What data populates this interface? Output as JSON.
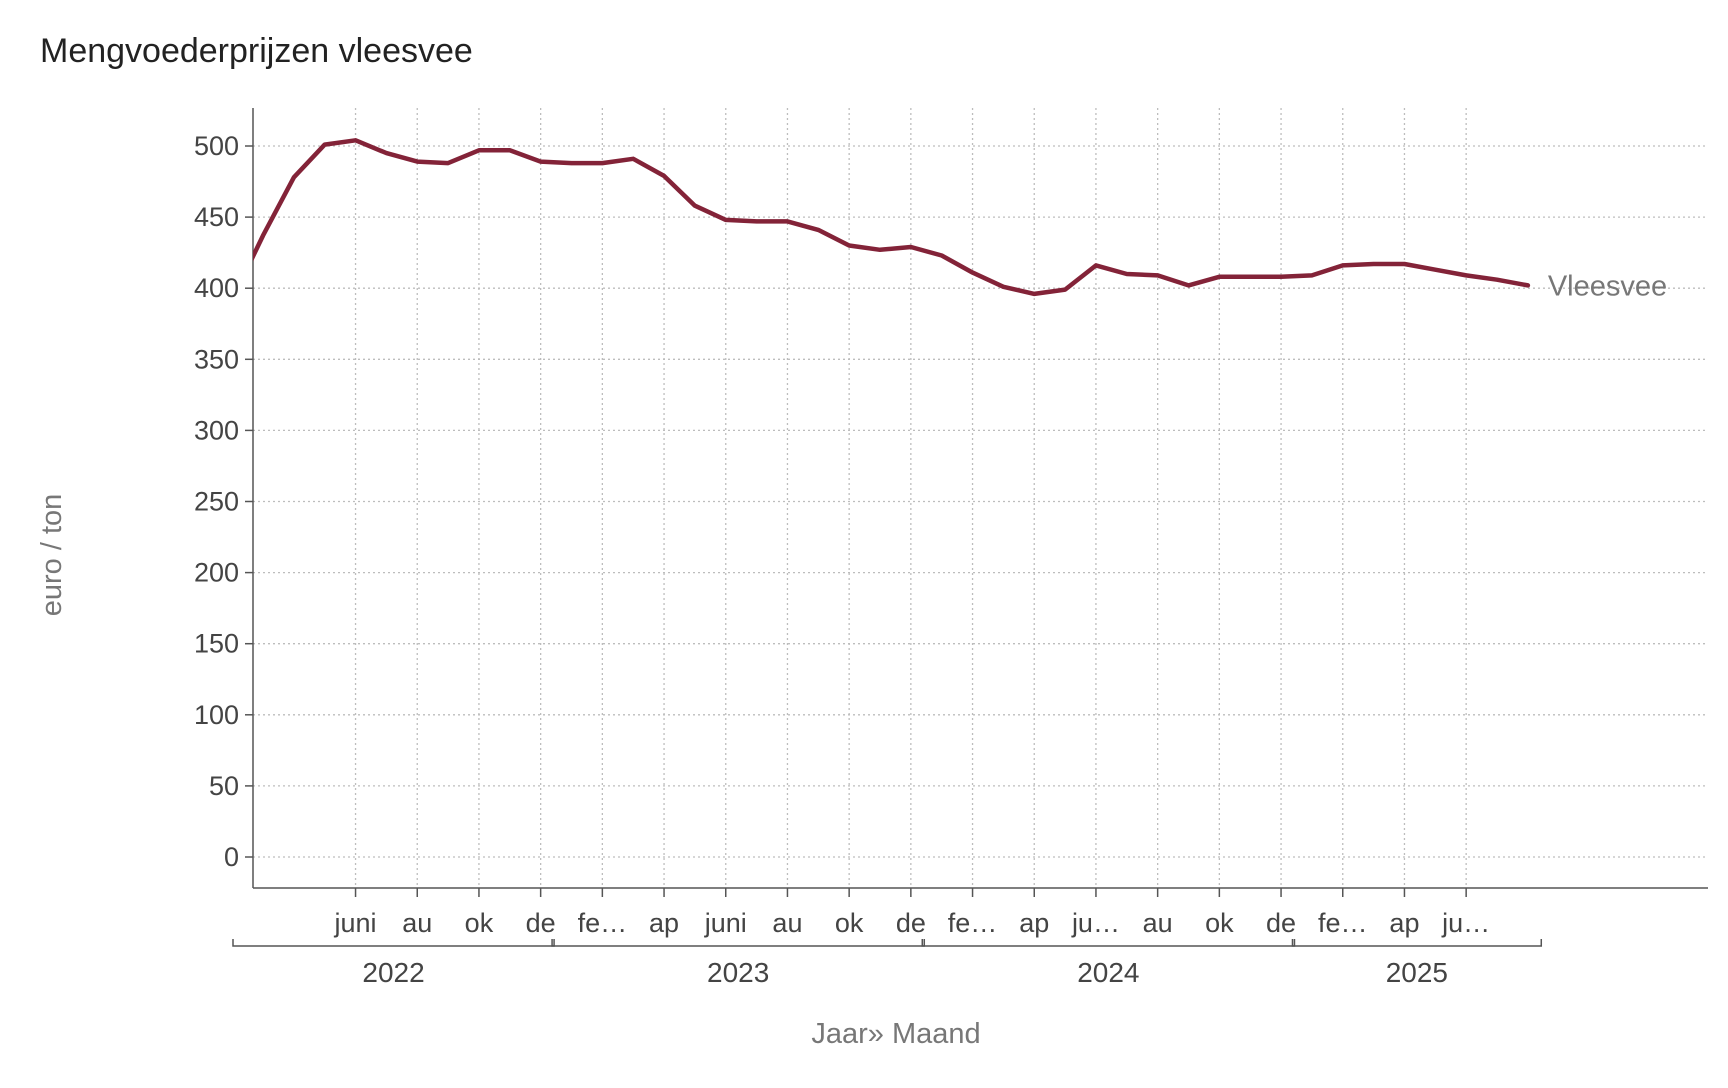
{
  "chart_data": {
    "type": "line",
    "title": "Mengvoederprijzen vleesvee",
    "xlabel": "Jaar» Maand",
    "ylabel": "euro / ton",
    "ylim": [
      0,
      525
    ],
    "yticks": [
      0,
      50,
      100,
      150,
      200,
      250,
      300,
      350,
      400,
      450,
      500
    ],
    "grid": true,
    "months": [
      "2022-03",
      "2022-04",
      "2022-05",
      "2022-06",
      "2022-07",
      "2022-08",
      "2022-09",
      "2022-10",
      "2022-11",
      "2022-12",
      "2023-01",
      "2023-02",
      "2023-03",
      "2023-04",
      "2023-05",
      "2023-06",
      "2023-07",
      "2023-08",
      "2023-09",
      "2023-10",
      "2023-11",
      "2023-12",
      "2024-01",
      "2024-02",
      "2024-03",
      "2024-04",
      "2024-05",
      "2024-06",
      "2024-07",
      "2024-08",
      "2024-09",
      "2024-10",
      "2024-11",
      "2024-12",
      "2025-01",
      "2025-02",
      "2025-03",
      "2025-04",
      "2025-05",
      "2025-06",
      "2025-07",
      "2025-08"
    ],
    "series": [
      {
        "name": "Vleesvee",
        "color": "#832338",
        "values": [
          437,
          478,
          501,
          504,
          495,
          489,
          488,
          497,
          497,
          489,
          488,
          488,
          491,
          479,
          458,
          448,
          447,
          447,
          441,
          430,
          427,
          429,
          423,
          411,
          401,
          396,
          399,
          416,
          410,
          409,
          402,
          408,
          408,
          408,
          409,
          416,
          417,
          417,
          413,
          409,
          406,
          402
        ]
      }
    ],
    "x_tick_labels": [
      {
        "label": "juni",
        "month": "2022-06"
      },
      {
        "label": "au",
        "month": "2022-08"
      },
      {
        "label": "ok",
        "month": "2022-10"
      },
      {
        "label": "de",
        "month": "2022-12"
      },
      {
        "label": "fe…",
        "month": "2023-02"
      },
      {
        "label": "ap",
        "month": "2023-04"
      },
      {
        "label": "juni",
        "month": "2023-06"
      },
      {
        "label": "au",
        "month": "2023-08"
      },
      {
        "label": "ok",
        "month": "2023-10"
      },
      {
        "label": "de",
        "month": "2023-12"
      },
      {
        "label": "fe…",
        "month": "2024-02"
      },
      {
        "label": "ap",
        "month": "2024-04"
      },
      {
        "label": "ju…",
        "month": "2024-06"
      },
      {
        "label": "au",
        "month": "2024-08"
      },
      {
        "label": "ok",
        "month": "2024-10"
      },
      {
        "label": "de",
        "month": "2024-12"
      },
      {
        "label": "fe…",
        "month": "2025-02"
      },
      {
        "label": "ap",
        "month": "2025-04"
      },
      {
        "label": "ju…",
        "month": "2025-06"
      }
    ],
    "years": [
      {
        "label": "2022",
        "from": "2022-03",
        "to": "2022-12"
      },
      {
        "label": "2023",
        "from": "2023-01",
        "to": "2023-12"
      },
      {
        "label": "2024",
        "from": "2024-01",
        "to": "2024-12"
      },
      {
        "label": "2025",
        "from": "2025-01",
        "to": "2025-08"
      }
    ]
  }
}
